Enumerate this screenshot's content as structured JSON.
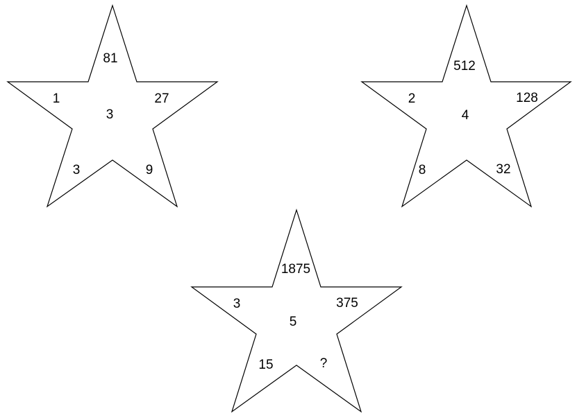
{
  "stars": [
    {
      "center": "3",
      "top": "81",
      "upper_left": "1",
      "upper_right": "27",
      "lower_left": "3",
      "lower_right": "9"
    },
    {
      "center": "4",
      "top": "512",
      "upper_left": "2",
      "upper_right": "128",
      "lower_left": "8",
      "lower_right": "32"
    },
    {
      "center": "5",
      "top": "1875",
      "upper_left": "3",
      "upper_right": "375",
      "lower_left": "15",
      "lower_right": "?"
    }
  ]
}
